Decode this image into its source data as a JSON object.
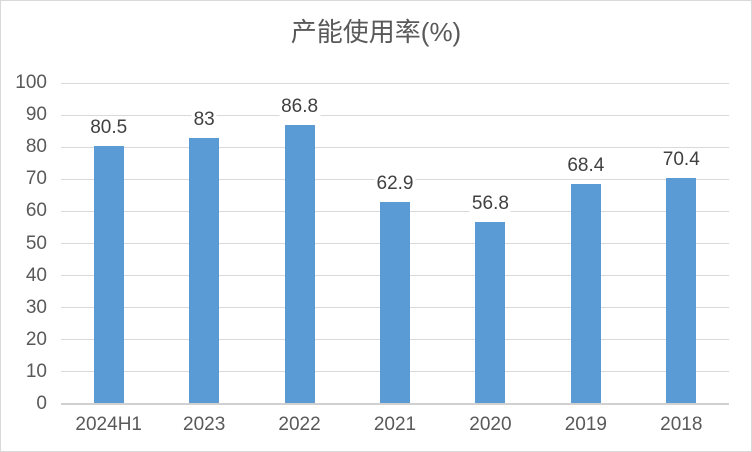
{
  "title": "产能使用率(%)",
  "colors": {
    "background": "#FFFFFF",
    "border": "#D9D9D9",
    "bar": "#5B9BD5",
    "gridline": "#D9D9D9",
    "axis_line": "#D0D0D0",
    "title_text": "#595959",
    "tick_text": "#595959",
    "data_label_text": "#404040"
  },
  "chart_data": {
    "type": "bar",
    "title": "产能使用率(%)",
    "categories": [
      "2024H1",
      "2023",
      "2022",
      "2021",
      "2020",
      "2019",
      "2018"
    ],
    "values": [
      80.5,
      83,
      86.8,
      62.9,
      56.8,
      68.4,
      70.4
    ],
    "data_labels": [
      "80.5",
      "83",
      "86.8",
      "62.9",
      "56.8",
      "68.4",
      "70.4"
    ],
    "xlabel": "",
    "ylabel": "",
    "ylim": [
      0,
      100
    ],
    "yticks": [
      0,
      10,
      20,
      30,
      40,
      50,
      60,
      70,
      80,
      90,
      100
    ],
    "grid": "horizontal",
    "legend": "none"
  }
}
